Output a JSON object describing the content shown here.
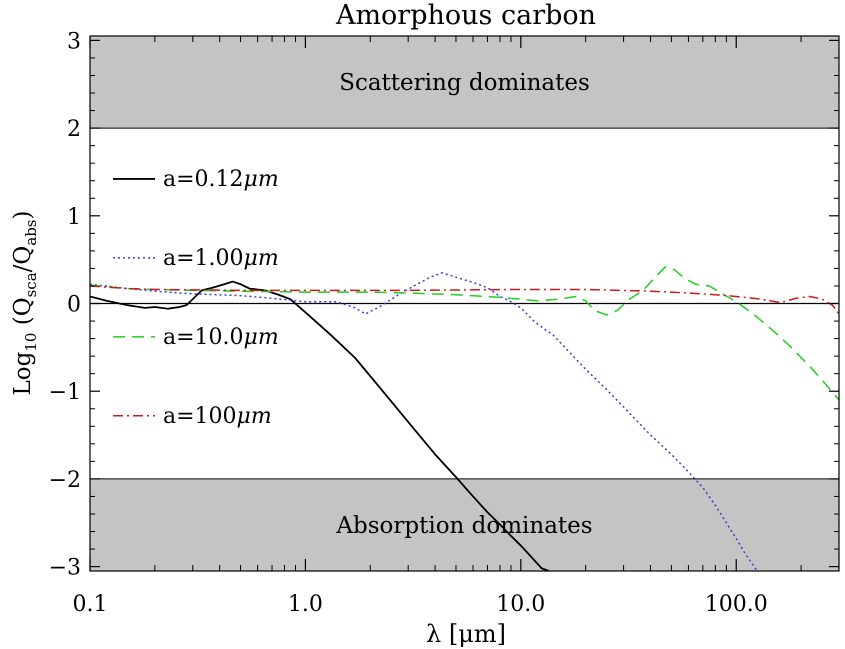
{
  "chart_data": {
    "type": "line",
    "title": "Amorphous carbon",
    "xlabel": "λ [μm]",
    "ylabel_parts": {
      "main": "Log",
      "sub": "10",
      "open": " (Q",
      "num_sub": "sca",
      "slash": "/Q",
      "den_sub": "abs",
      "close": ")"
    },
    "x_scale": "log",
    "xlim": [
      0.1,
      300
    ],
    "ylim": [
      -3.05,
      3.05
    ],
    "x_ticks": [
      {
        "value": 0.1,
        "label": "0.1"
      },
      {
        "value": 1,
        "label": "1.0"
      },
      {
        "value": 10,
        "label": "10.0"
      },
      {
        "value": 100,
        "label": "100.0"
      }
    ],
    "y_ticks": [
      {
        "value": 3,
        "label": "3"
      },
      {
        "value": 2,
        "label": "2"
      },
      {
        "value": 1,
        "label": "1"
      },
      {
        "value": 0,
        "label": "0"
      },
      {
        "value": -1,
        "label": "−1"
      },
      {
        "value": -2,
        "label": "−2"
      },
      {
        "value": -3,
        "label": "−3"
      }
    ],
    "regions": [
      {
        "name": "scattering",
        "label": "Scattering dominates",
        "y0": 2,
        "y1": 3.05,
        "color": "#c4c4c4"
      },
      {
        "name": "absorption",
        "label": "Absorption dominates",
        "y0": -3.05,
        "y1": -2,
        "color": "#c4c4c4"
      }
    ],
    "reference_line": 0,
    "series": [
      {
        "name": "a=0.12",
        "unit": "μm",
        "color": "#000000",
        "dash": "",
        "points": [
          [
            0.1,
            0.08
          ],
          [
            0.12,
            0.03
          ],
          [
            0.15,
            -0.02
          ],
          [
            0.18,
            -0.05
          ],
          [
            0.2,
            -0.04
          ],
          [
            0.23,
            -0.06
          ],
          [
            0.26,
            -0.04
          ],
          [
            0.28,
            -0.02
          ],
          [
            0.3,
            0.05
          ],
          [
            0.33,
            0.15
          ],
          [
            0.37,
            0.18
          ],
          [
            0.42,
            0.22
          ],
          [
            0.46,
            0.25
          ],
          [
            0.5,
            0.22
          ],
          [
            0.55,
            0.17
          ],
          [
            0.65,
            0.15
          ],
          [
            0.75,
            0.1
          ],
          [
            0.85,
            0.05
          ],
          [
            1.0,
            -0.1
          ],
          [
            1.3,
            -0.35
          ],
          [
            1.7,
            -0.62
          ],
          [
            2.2,
            -0.95
          ],
          [
            3.0,
            -1.35
          ],
          [
            4.0,
            -1.72
          ],
          [
            5.0,
            -1.98
          ],
          [
            6.0,
            -2.2
          ],
          [
            7.0,
            -2.38
          ],
          [
            8.0,
            -2.52
          ],
          [
            9.0,
            -2.65
          ],
          [
            10.0,
            -2.76
          ],
          [
            11.0,
            -2.87
          ],
          [
            12.5,
            -3.02
          ],
          [
            13.5,
            -3.05
          ]
        ]
      },
      {
        "name": "a=1.00",
        "unit": "μm",
        "color": "#3b3bd6",
        "dash": "2,3",
        "points": [
          [
            0.1,
            0.22
          ],
          [
            0.15,
            0.17
          ],
          [
            0.2,
            0.14
          ],
          [
            0.3,
            0.11
          ],
          [
            0.5,
            0.09
          ],
          [
            0.7,
            0.06
          ],
          [
            1.0,
            0.02
          ],
          [
            1.4,
            0.02
          ],
          [
            1.7,
            -0.05
          ],
          [
            1.9,
            -0.12
          ],
          [
            2.2,
            -0.04
          ],
          [
            2.7,
            0.1
          ],
          [
            3.3,
            0.22
          ],
          [
            3.8,
            0.3
          ],
          [
            4.3,
            0.35
          ],
          [
            5.0,
            0.3
          ],
          [
            6.0,
            0.24
          ],
          [
            7.0,
            0.18
          ],
          [
            8.0,
            0.08
          ],
          [
            9.0,
            0.02
          ],
          [
            10.0,
            -0.05
          ],
          [
            11.5,
            -0.2
          ],
          [
            13.0,
            -0.3
          ],
          [
            14.0,
            -0.35
          ],
          [
            16.0,
            -0.5
          ],
          [
            20.0,
            -0.75
          ],
          [
            25.0,
            -0.98
          ],
          [
            30.0,
            -1.18
          ],
          [
            40.0,
            -1.5
          ],
          [
            50.0,
            -1.72
          ],
          [
            60.0,
            -1.92
          ],
          [
            70.0,
            -2.1
          ],
          [
            80.0,
            -2.3
          ],
          [
            90.0,
            -2.5
          ],
          [
            100.0,
            -2.68
          ],
          [
            110.0,
            -2.85
          ],
          [
            125.0,
            -3.05
          ]
        ]
      },
      {
        "name": "a=10.0",
        "unit": "μm",
        "color": "#22cc22",
        "dash": "12,7",
        "points": [
          [
            0.1,
            0.21
          ],
          [
            0.15,
            0.17
          ],
          [
            0.2,
            0.16
          ],
          [
            0.3,
            0.15
          ],
          [
            0.5,
            0.14
          ],
          [
            1.0,
            0.13
          ],
          [
            2.0,
            0.13
          ],
          [
            3.0,
            0.12
          ],
          [
            5.0,
            0.1
          ],
          [
            8.0,
            0.07
          ],
          [
            12.0,
            0.03
          ],
          [
            15.0,
            0.05
          ],
          [
            18.0,
            0.08
          ],
          [
            20.0,
            0.03
          ],
          [
            22.0,
            -0.08
          ],
          [
            25.0,
            -0.13
          ],
          [
            28.0,
            -0.08
          ],
          [
            32.0,
            0.05
          ],
          [
            37.0,
            0.15
          ],
          [
            42.0,
            0.3
          ],
          [
            47.0,
            0.42
          ],
          [
            52.0,
            0.38
          ],
          [
            58.0,
            0.28
          ],
          [
            65.0,
            0.22
          ],
          [
            75.0,
            0.2
          ],
          [
            85.0,
            0.12
          ],
          [
            100.0,
            0.02
          ],
          [
            120.0,
            -0.12
          ],
          [
            150.0,
            -0.32
          ],
          [
            180.0,
            -0.5
          ],
          [
            220.0,
            -0.72
          ],
          [
            260.0,
            -0.92
          ],
          [
            300.0,
            -1.1
          ]
        ]
      },
      {
        "name": "a=100",
        "unit": "μm",
        "color": "#cc1a1a",
        "dash": "10,4,2,4",
        "points": [
          [
            0.1,
            0.2
          ],
          [
            0.15,
            0.17
          ],
          [
            0.2,
            0.16
          ],
          [
            0.5,
            0.15
          ],
          [
            1.0,
            0.15
          ],
          [
            3.0,
            0.15
          ],
          [
            10.0,
            0.16
          ],
          [
            20.0,
            0.16
          ],
          [
            40.0,
            0.14
          ],
          [
            60.0,
            0.12
          ],
          [
            80.0,
            0.1
          ],
          [
            100.0,
            0.08
          ],
          [
            130.0,
            0.05
          ],
          [
            160.0,
            0.01
          ],
          [
            190.0,
            0.06
          ],
          [
            220.0,
            0.08
          ],
          [
            250.0,
            0.05
          ],
          [
            280.0,
            -0.02
          ],
          [
            300.0,
            -0.12
          ]
        ]
      }
    ],
    "legend_placement": "left"
  }
}
